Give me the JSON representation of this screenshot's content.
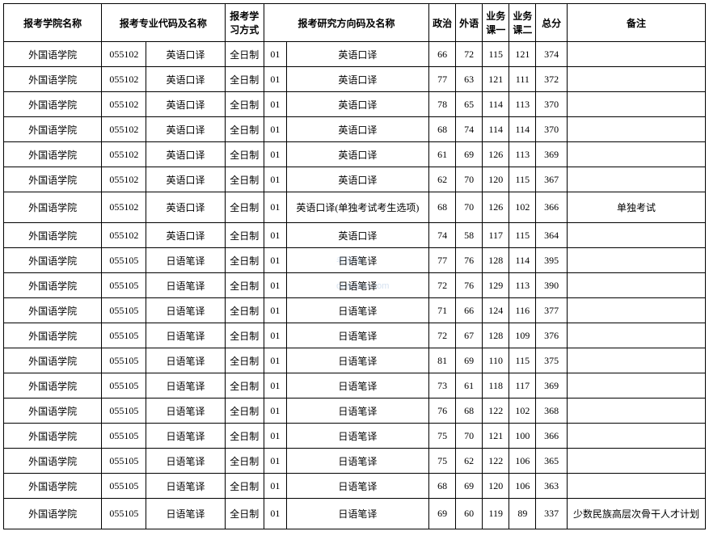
{
  "table": {
    "headers": {
      "school": "报考学院名称",
      "major": "报考专业代码及名称",
      "mode": "报考学习方式",
      "direction": "报考研究方向码及名称",
      "politics": "政治",
      "foreign": "外语",
      "course1": "业务课一",
      "course2": "业务课二",
      "total": "总分",
      "remark": "备注"
    },
    "rows": [
      {
        "school": "外国语学院",
        "majorCode": "055102",
        "majorName": "英语口译",
        "mode": "全日制",
        "dirCode": "01",
        "dirName": "英语口译",
        "s1": "66",
        "s2": "72",
        "s3": "115",
        "s4": "121",
        "total": "374",
        "remark": "",
        "tall": false
      },
      {
        "school": "外国语学院",
        "majorCode": "055102",
        "majorName": "英语口译",
        "mode": "全日制",
        "dirCode": "01",
        "dirName": "英语口译",
        "s1": "77",
        "s2": "63",
        "s3": "121",
        "s4": "111",
        "total": "372",
        "remark": "",
        "tall": false
      },
      {
        "school": "外国语学院",
        "majorCode": "055102",
        "majorName": "英语口译",
        "mode": "全日制",
        "dirCode": "01",
        "dirName": "英语口译",
        "s1": "78",
        "s2": "65",
        "s3": "114",
        "s4": "113",
        "total": "370",
        "remark": "",
        "tall": false
      },
      {
        "school": "外国语学院",
        "majorCode": "055102",
        "majorName": "英语口译",
        "mode": "全日制",
        "dirCode": "01",
        "dirName": "英语口译",
        "s1": "68",
        "s2": "74",
        "s3": "114",
        "s4": "114",
        "total": "370",
        "remark": "",
        "tall": false
      },
      {
        "school": "外国语学院",
        "majorCode": "055102",
        "majorName": "英语口译",
        "mode": "全日制",
        "dirCode": "01",
        "dirName": "英语口译",
        "s1": "61",
        "s2": "69",
        "s3": "126",
        "s4": "113",
        "total": "369",
        "remark": "",
        "tall": false
      },
      {
        "school": "外国语学院",
        "majorCode": "055102",
        "majorName": "英语口译",
        "mode": "全日制",
        "dirCode": "01",
        "dirName": "英语口译",
        "s1": "62",
        "s2": "70",
        "s3": "120",
        "s4": "115",
        "total": "367",
        "remark": "",
        "tall": false
      },
      {
        "school": "外国语学院",
        "majorCode": "055102",
        "majorName": "英语口译",
        "mode": "全日制",
        "dirCode": "01",
        "dirName": "英语口译(单独考试考生选项)",
        "s1": "68",
        "s2": "70",
        "s3": "126",
        "s4": "102",
        "total": "366",
        "remark": "单独考试",
        "tall": true
      },
      {
        "school": "外国语学院",
        "majorCode": "055102",
        "majorName": "英语口译",
        "mode": "全日制",
        "dirCode": "01",
        "dirName": "英语口译",
        "s1": "74",
        "s2": "58",
        "s3": "117",
        "s4": "115",
        "total": "364",
        "remark": "",
        "tall": false
      },
      {
        "school": "外国语学院",
        "majorCode": "055105",
        "majorName": "日语笔译",
        "mode": "全日制",
        "dirCode": "01",
        "dirName": "日语笔译",
        "s1": "77",
        "s2": "76",
        "s3": "128",
        "s4": "114",
        "total": "395",
        "remark": "",
        "tall": false
      },
      {
        "school": "外国语学院",
        "majorCode": "055105",
        "majorName": "日语笔译",
        "mode": "全日制",
        "dirCode": "01",
        "dirName": "日语笔译",
        "s1": "72",
        "s2": "76",
        "s3": "129",
        "s4": "113",
        "total": "390",
        "remark": "",
        "tall": false
      },
      {
        "school": "外国语学院",
        "majorCode": "055105",
        "majorName": "日语笔译",
        "mode": "全日制",
        "dirCode": "01",
        "dirName": "日语笔译",
        "s1": "71",
        "s2": "66",
        "s3": "124",
        "s4": "116",
        "total": "377",
        "remark": "",
        "tall": false
      },
      {
        "school": "外国语学院",
        "majorCode": "055105",
        "majorName": "日语笔译",
        "mode": "全日制",
        "dirCode": "01",
        "dirName": "日语笔译",
        "s1": "72",
        "s2": "67",
        "s3": "128",
        "s4": "109",
        "total": "376",
        "remark": "",
        "tall": false
      },
      {
        "school": "外国语学院",
        "majorCode": "055105",
        "majorName": "日语笔译",
        "mode": "全日制",
        "dirCode": "01",
        "dirName": "日语笔译",
        "s1": "81",
        "s2": "69",
        "s3": "110",
        "s4": "115",
        "total": "375",
        "remark": "",
        "tall": false
      },
      {
        "school": "外国语学院",
        "majorCode": "055105",
        "majorName": "日语笔译",
        "mode": "全日制",
        "dirCode": "01",
        "dirName": "日语笔译",
        "s1": "73",
        "s2": "61",
        "s3": "118",
        "s4": "117",
        "total": "369",
        "remark": "",
        "tall": false
      },
      {
        "school": "外国语学院",
        "majorCode": "055105",
        "majorName": "日语笔译",
        "mode": "全日制",
        "dirCode": "01",
        "dirName": "日语笔译",
        "s1": "76",
        "s2": "68",
        "s3": "122",
        "s4": "102",
        "total": "368",
        "remark": "",
        "tall": false
      },
      {
        "school": "外国语学院",
        "majorCode": "055105",
        "majorName": "日语笔译",
        "mode": "全日制",
        "dirCode": "01",
        "dirName": "日语笔译",
        "s1": "75",
        "s2": "70",
        "s3": "121",
        "s4": "100",
        "total": "366",
        "remark": "",
        "tall": false
      },
      {
        "school": "外国语学院",
        "majorCode": "055105",
        "majorName": "日语笔译",
        "mode": "全日制",
        "dirCode": "01",
        "dirName": "日语笔译",
        "s1": "75",
        "s2": "62",
        "s3": "122",
        "s4": "106",
        "total": "365",
        "remark": "",
        "tall": false
      },
      {
        "school": "外国语学院",
        "majorCode": "055105",
        "majorName": "日语笔译",
        "mode": "全日制",
        "dirCode": "01",
        "dirName": "日语笔译",
        "s1": "68",
        "s2": "69",
        "s3": "120",
        "s4": "106",
        "total": "363",
        "remark": "",
        "tall": false
      },
      {
        "school": "外国语学院",
        "majorCode": "055105",
        "majorName": "日语笔译",
        "mode": "全日制",
        "dirCode": "01",
        "dirName": "日语笔译",
        "s1": "69",
        "s2": "60",
        "s3": "119",
        "s4": "89",
        "total": "337",
        "remark": "少数民族高层次骨干人才计划",
        "tall": true
      }
    ]
  },
  "watermark": {
    "line1": "考研派",
    "line2": "okaoyan.com"
  }
}
